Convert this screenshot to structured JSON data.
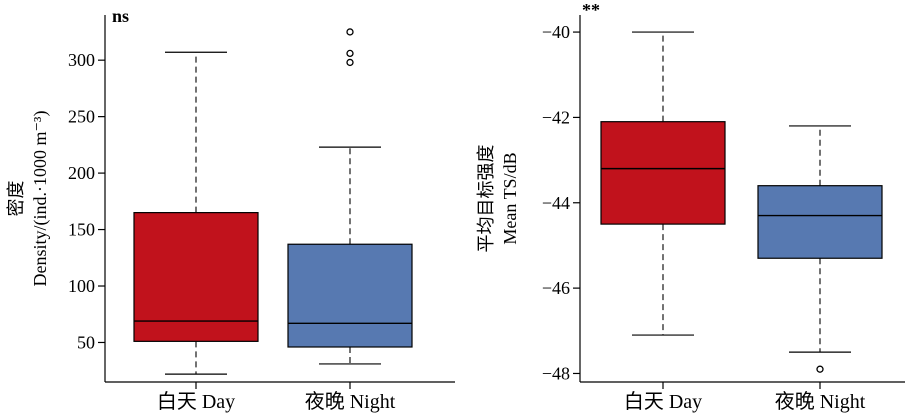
{
  "chart_data": [
    {
      "type": "box",
      "ylabel_line1": "密度",
      "ylabel_line2": "Density/(ind.·1000 m⁻³)",
      "categories": [
        "白天 Day",
        "夜晚 Night"
      ],
      "significance": "ns",
      "ylim": [
        15,
        340
      ],
      "yticks": [
        50,
        100,
        150,
        200,
        250,
        300
      ],
      "grid": false,
      "boxes": [
        {
          "category": "白天 Day",
          "color": "#c1121c",
          "whisker_low": 22,
          "q1": 51,
          "median": 69,
          "q3": 165,
          "whisker_high": 307,
          "outliers": []
        },
        {
          "category": "夜晚 Night",
          "color": "#5779b1",
          "whisker_low": 31,
          "q1": 46,
          "median": 67,
          "q3": 137,
          "whisker_high": 223,
          "outliers": [
            298,
            306,
            325
          ]
        }
      ]
    },
    {
      "type": "box",
      "ylabel_line1": "平均目标强度",
      "ylabel_line2": "Mean TS/dB",
      "categories": [
        "白天 Day",
        "夜晚 Night"
      ],
      "significance": "**",
      "ylim": [
        -48.2,
        -39.6
      ],
      "yticks": [
        -48,
        -46,
        -44,
        -42,
        -40
      ],
      "grid": false,
      "boxes": [
        {
          "category": "白天 Day",
          "color": "#c1121c",
          "whisker_low": -47.1,
          "q1": -44.5,
          "median": -43.2,
          "q3": -42.1,
          "whisker_high": -40.0,
          "outliers": []
        },
        {
          "category": "夜晚 Night",
          "color": "#5779b1",
          "whisker_low": -47.5,
          "q1": -45.3,
          "median": -44.3,
          "q3": -43.6,
          "whisker_high": -42.2,
          "outliers": [
            -47.9
          ]
        }
      ]
    }
  ]
}
